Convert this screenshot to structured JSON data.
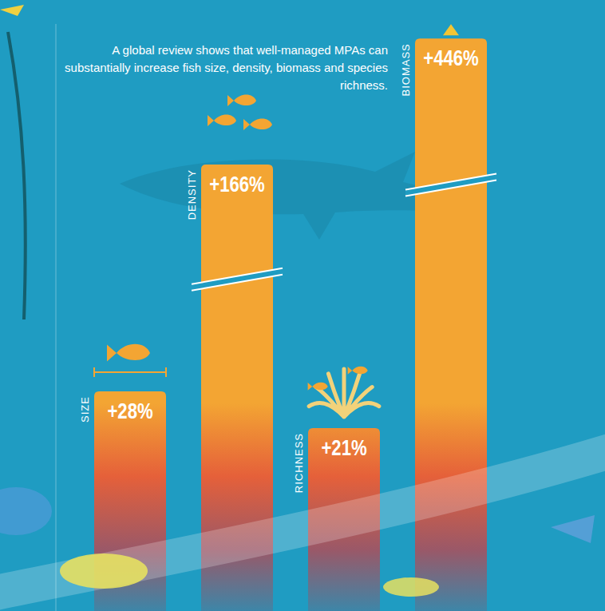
{
  "chart_data": {
    "type": "bar",
    "title": "A global review shows that well-managed MPAs can substantially increase fish size, density, biomass and species richness.",
    "categories": [
      "SIZE",
      "DENSITY",
      "RICHNESS",
      "BIOMASS"
    ],
    "values": [
      28,
      166,
      21,
      446
    ],
    "value_labels": [
      "+28%",
      "+166%",
      "+21%",
      "+446%"
    ],
    "color": "#f3a533",
    "ylim": [
      5,
      500
    ],
    "log": "y",
    "data_labels": true,
    "tick_labels": false,
    "grid": false
  }
}
